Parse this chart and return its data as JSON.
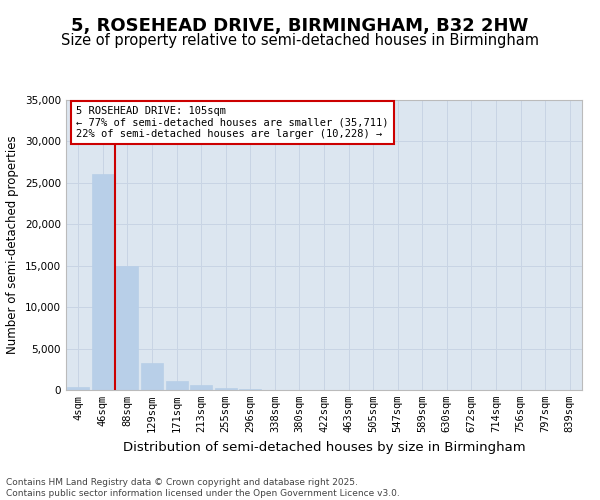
{
  "title": "5, ROSEHEAD DRIVE, BIRMINGHAM, B32 2HW",
  "subtitle": "Size of property relative to semi-detached houses in Birmingham",
  "xlabel": "Distribution of semi-detached houses by size in Birmingham",
  "ylabel": "Number of semi-detached properties",
  "categories": [
    "4sqm",
    "46sqm",
    "88sqm",
    "129sqm",
    "171sqm",
    "213sqm",
    "255sqm",
    "296sqm",
    "338sqm",
    "380sqm",
    "422sqm",
    "463sqm",
    "505sqm",
    "547sqm",
    "589sqm",
    "630sqm",
    "672sqm",
    "714sqm",
    "756sqm",
    "797sqm",
    "839sqm"
  ],
  "values": [
    380,
    26100,
    15000,
    3300,
    1100,
    550,
    280,
    130,
    50,
    20,
    8,
    4,
    2,
    1,
    1,
    0,
    0,
    0,
    0,
    0,
    0
  ],
  "bar_color": "#b8cfe8",
  "vline_color": "#cc0000",
  "vline_pos": 1.5,
  "annotation_line1": "5 ROSEHEAD DRIVE: 105sqm",
  "annotation_line2": "← 77% of semi-detached houses are smaller (35,711)",
  "annotation_line3": "22% of semi-detached houses are larger (10,228) →",
  "annotation_box_edgecolor": "#cc0000",
  "ylim": [
    0,
    35000
  ],
  "yticks": [
    0,
    5000,
    10000,
    15000,
    20000,
    25000,
    30000,
    35000
  ],
  "grid_color": "#c8d4e4",
  "bg_color": "#dce6f0",
  "footer": "Contains HM Land Registry data © Crown copyright and database right 2025.\nContains public sector information licensed under the Open Government Licence v3.0.",
  "title_fontsize": 13,
  "subtitle_fontsize": 10.5,
  "xlabel_fontsize": 9.5,
  "ylabel_fontsize": 8.5,
  "tick_fontsize": 7.5,
  "footer_fontsize": 6.5,
  "annotation_fontsize": 7.5
}
